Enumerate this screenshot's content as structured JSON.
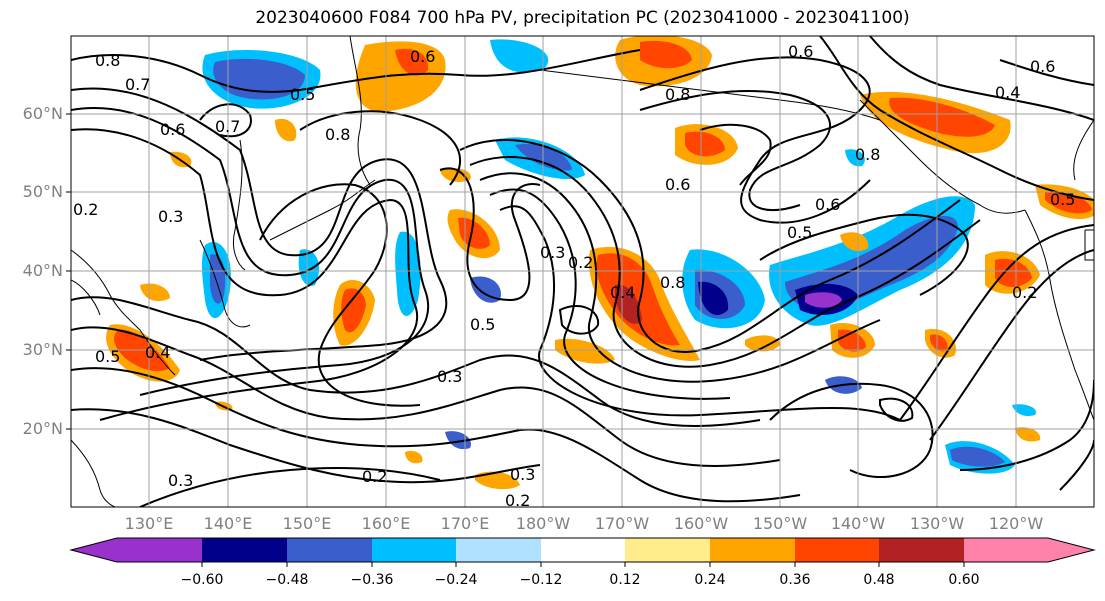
{
  "title": "2023040600 F084 700 hPa PV, precipitation PC (2023041000 - 2023041100)",
  "map": {
    "lat_labels": [
      "60°N",
      "50°N",
      "40°N",
      "30°N",
      "20°N"
    ],
    "lon_labels": [
      "130°E",
      "140°E",
      "150°E",
      "160°E",
      "170°E",
      "180°W",
      "170°W",
      "160°W",
      "150°W",
      "140°W",
      "130°W",
      "120°W"
    ],
    "contour_labels": [
      "0.8",
      "0.7",
      "0.6",
      "0.7",
      "0.5",
      "0.6",
      "0.8",
      "0.3",
      "0.2",
      "0.4",
      "0.5",
      "0.3",
      "0.5",
      "0.3",
      "0.2",
      "0.8",
      "0.4",
      "0.5",
      "0.6",
      "0.8",
      "0.6",
      "0.8",
      "0.6",
      "0.4",
      "0.6",
      "0.5",
      "0.2",
      "0.3",
      "0.3",
      "0.2",
      "0.2"
    ],
    "colors": {
      "land": "#000000",
      "grid": "#a0a0a0",
      "contour": "#000000"
    }
  },
  "colorbar": {
    "tick_labels": [
      "−0.60",
      "−0.48",
      "−0.36",
      "−0.24",
      "−0.12",
      "0.12",
      "0.24",
      "0.36",
      "0.48",
      "0.60"
    ],
    "colors": [
      "#9932cc",
      "#00008b",
      "#3a5fcd",
      "#00bfff",
      "#b0e2ff",
      "#ffffff",
      "#ffec8b",
      "#ffa500",
      "#ff4500",
      "#b22222",
      "#ff82ab"
    ]
  }
}
